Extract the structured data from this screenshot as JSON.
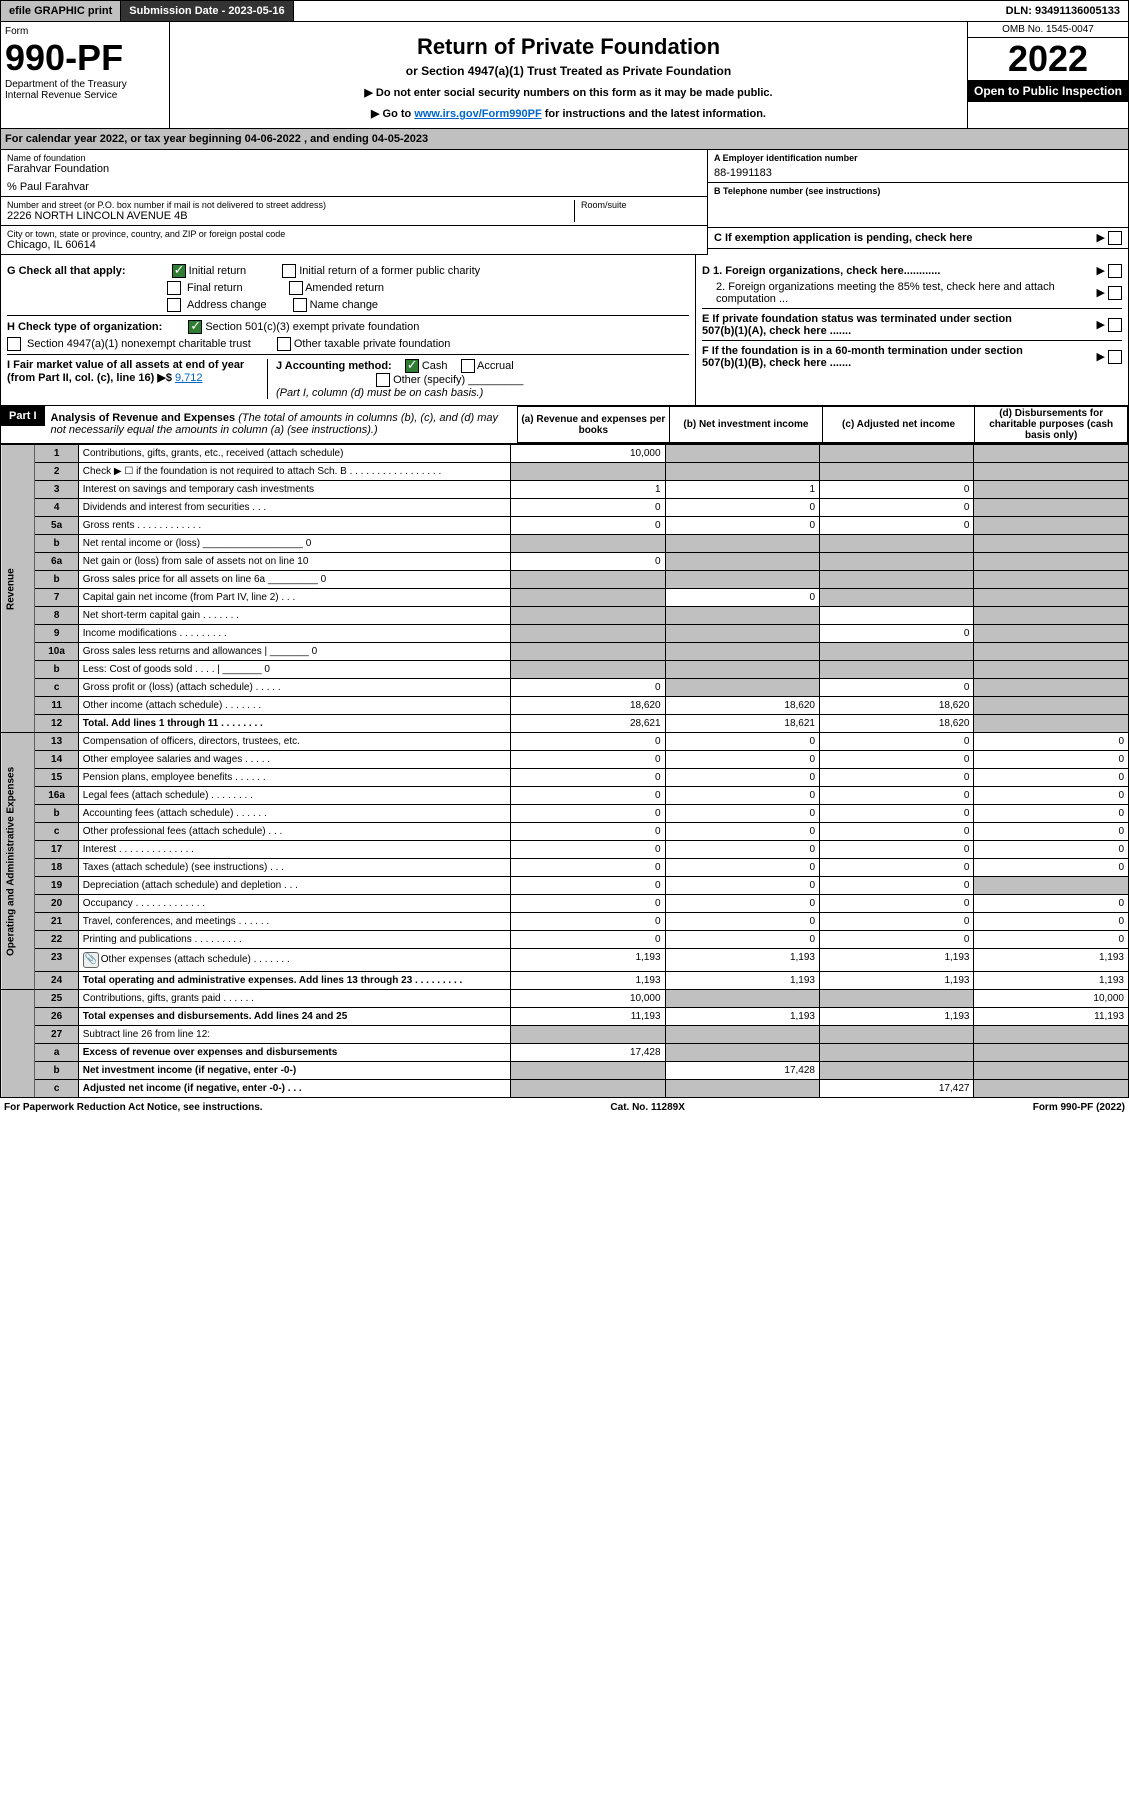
{
  "topBar": {
    "print": "efile GRAPHIC print",
    "submission": "Submission Date - 2023-05-16",
    "dln": "DLN: 93491136005133"
  },
  "header": {
    "form": "Form",
    "formNum": "990-PF",
    "dept": "Department of the Treasury\nInternal Revenue Service",
    "title": "Return of Private Foundation",
    "subtitle": "or Section 4947(a)(1) Trust Treated as Private Foundation",
    "note1": "▶ Do not enter social security numbers on this form as it may be made public.",
    "note2": "▶ Go to ",
    "link": "www.irs.gov/Form990PF",
    "note3": " for instructions and the latest information.",
    "omb": "OMB No. 1545-0047",
    "year": "2022",
    "open": "Open to Public Inspection"
  },
  "calYear": "For calendar year 2022, or tax year beginning 04-06-2022                          , and ending 04-05-2023",
  "foundation": {
    "nameLabel": "Name of foundation",
    "name": "Farahvar Foundation",
    "careOf": "% Paul Farahvar",
    "addrLabel": "Number and street (or P.O. box number if mail is not delivered to street address)",
    "addr": "2226 NORTH LINCOLN AVENUE 4B",
    "roomLabel": "Room/suite",
    "cityLabel": "City or town, state or province, country, and ZIP or foreign postal code",
    "city": "Chicago, IL  60614"
  },
  "right": {
    "aLabel": "A Employer identification number",
    "ein": "88-1991183",
    "bLabel": "B Telephone number (see instructions)",
    "cLabel": "C If exemption application is pending, check here",
    "d1": "D 1. Foreign organizations, check here............",
    "d2": "2. Foreign organizations meeting the 85% test, check here and attach computation ...",
    "e": "E  If private foundation status was terminated under section 507(b)(1)(A), check here .......",
    "f": "F  If the foundation is in a 60-month termination under section 507(b)(1)(B), check here ......."
  },
  "checks": {
    "g": "G Check all that apply:",
    "initial": "Initial return",
    "initialFormer": "Initial return of a former public charity",
    "final": "Final return",
    "amended": "Amended return",
    "addrChange": "Address change",
    "nameChange": "Name change",
    "h": "H Check type of organization:",
    "h1": "Section 501(c)(3) exempt private foundation",
    "h2": "Section 4947(a)(1) nonexempt charitable trust",
    "h3": "Other taxable private foundation",
    "i": "I Fair market value of all assets at end of year (from Part II, col. (c), line 16) ▶$ ",
    "iVal": "9,712",
    "j": "J Accounting method:",
    "cash": "Cash",
    "accrual": "Accrual",
    "other": "Other (specify)",
    "note": "(Part I, column (d) must be on cash basis.)"
  },
  "part1": {
    "label": "Part I",
    "title": "Analysis of Revenue and Expenses",
    "titleNote": " (The total of amounts in columns (b), (c), and (d) may not necessarily equal the amounts in column (a) (see instructions).)",
    "colA": "(a)    Revenue and expenses per books",
    "colB": "(b)    Net investment income",
    "colC": "(c)    Adjusted net income",
    "colD": "(d)    Disbursements for charitable purposes (cash basis only)"
  },
  "sections": {
    "revenue": "Revenue",
    "expenses": "Operating and Administrative Expenses"
  },
  "rows": [
    {
      "n": "1",
      "d": "Contributions, gifts, grants, etc., received (attach schedule)",
      "a": "10,000",
      "b": "",
      "c": "",
      "dd": "",
      "bs": true,
      "cs": true,
      "ds": true
    },
    {
      "n": "2",
      "d": "Check ▶ ☐ if the foundation is not required to attach Sch. B  .  .  .  .  .  .  .  .  .  .  .  .  .  .  .  .  .",
      "a": "",
      "b": "",
      "c": "",
      "dd": "",
      "as": true,
      "bs": true,
      "cs": true,
      "ds": true
    },
    {
      "n": "3",
      "d": "Interest on savings and temporary cash investments",
      "a": "1",
      "b": "1",
      "c": "0",
      "dd": "",
      "ds": true
    },
    {
      "n": "4",
      "d": "Dividends and interest from securities   .   .   .",
      "a": "0",
      "b": "0",
      "c": "0",
      "dd": "",
      "ds": true
    },
    {
      "n": "5a",
      "d": "Gross rents   .   .   .   .   .   .   .   .   .   .   .   .",
      "a": "0",
      "b": "0",
      "c": "0",
      "dd": "",
      "ds": true
    },
    {
      "n": "b",
      "d": "Net rental income or (loss) __________________ 0",
      "a": "",
      "b": "",
      "c": "",
      "dd": "",
      "as": true,
      "bs": true,
      "cs": true,
      "ds": true
    },
    {
      "n": "6a",
      "d": "Net gain or (loss) from sale of assets not on line 10",
      "a": "0",
      "b": "",
      "c": "",
      "dd": "",
      "bs": true,
      "cs": true,
      "ds": true
    },
    {
      "n": "b",
      "d": "Gross sales price for all assets on line 6a _________ 0",
      "a": "",
      "b": "",
      "c": "",
      "dd": "",
      "as": true,
      "bs": true,
      "cs": true,
      "ds": true
    },
    {
      "n": "7",
      "d": "Capital gain net income (from Part IV, line 2)   .   .   .",
      "a": "",
      "b": "0",
      "c": "",
      "dd": "",
      "as": true,
      "cs": true,
      "ds": true
    },
    {
      "n": "8",
      "d": "Net short-term capital gain   .   .   .   .   .   .   .",
      "a": "",
      "b": "",
      "c": "",
      "dd": "",
      "as": true,
      "bs": true,
      "ds": true
    },
    {
      "n": "9",
      "d": "Income modifications   .   .   .   .   .   .   .   .   .",
      "a": "",
      "b": "",
      "c": "0",
      "dd": "",
      "as": true,
      "bs": true,
      "ds": true
    },
    {
      "n": "10a",
      "d": "Gross sales less returns and allowances  | _______ 0",
      "a": "",
      "b": "",
      "c": "",
      "dd": "",
      "as": true,
      "bs": true,
      "cs": true,
      "ds": true
    },
    {
      "n": "b",
      "d": "Less: Cost of goods sold     .    .    .    .   | _______ 0",
      "a": "",
      "b": "",
      "c": "",
      "dd": "",
      "as": true,
      "bs": true,
      "cs": true,
      "ds": true
    },
    {
      "n": "c",
      "d": "Gross profit or (loss) (attach schedule)    .   .   .   .   .",
      "a": "0",
      "b": "",
      "c": "0",
      "dd": "",
      "bs": true,
      "ds": true
    },
    {
      "n": "11",
      "d": "Other income (attach schedule)    .   .   .   .   .   .   .",
      "a": "18,620",
      "b": "18,620",
      "c": "18,620",
      "dd": "",
      "ds": true
    },
    {
      "n": "12",
      "d": "Total. Add lines 1 through 11    .   .   .   .   .   .   .   .",
      "a": "28,621",
      "b": "18,621",
      "c": "18,620",
      "dd": "",
      "bold": true,
      "ds": true
    },
    {
      "n": "13",
      "d": "Compensation of officers, directors, trustees, etc.",
      "a": "0",
      "b": "0",
      "c": "0",
      "dd": "0"
    },
    {
      "n": "14",
      "d": "Other employee salaries and wages    .   .   .   .   .",
      "a": "0",
      "b": "0",
      "c": "0",
      "dd": "0"
    },
    {
      "n": "15",
      "d": "Pension plans, employee benefits   .   .   .   .   .   .",
      "a": "0",
      "b": "0",
      "c": "0",
      "dd": "0"
    },
    {
      "n": "16a",
      "d": "Legal fees (attach schedule)  .   .   .   .   .   .   .   .",
      "a": "0",
      "b": "0",
      "c": "0",
      "dd": "0"
    },
    {
      "n": "b",
      "d": "Accounting fees (attach schedule)   .   .   .   .   .   .",
      "a": "0",
      "b": "0",
      "c": "0",
      "dd": "0"
    },
    {
      "n": "c",
      "d": "Other professional fees (attach schedule)    .   .   .",
      "a": "0",
      "b": "0",
      "c": "0",
      "dd": "0"
    },
    {
      "n": "17",
      "d": "Interest   .   .   .   .   .   .   .   .   .   .   .   .   .   .",
      "a": "0",
      "b": "0",
      "c": "0",
      "dd": "0"
    },
    {
      "n": "18",
      "d": "Taxes (attach schedule) (see instructions)     .   .   .",
      "a": "0",
      "b": "0",
      "c": "0",
      "dd": "0"
    },
    {
      "n": "19",
      "d": "Depreciation (attach schedule) and depletion    .   .   .",
      "a": "0",
      "b": "0",
      "c": "0",
      "dd": "",
      "ds": true
    },
    {
      "n": "20",
      "d": "Occupancy  .   .   .   .   .   .   .   .   .   .   .   .   .",
      "a": "0",
      "b": "0",
      "c": "0",
      "dd": "0"
    },
    {
      "n": "21",
      "d": "Travel, conferences, and meetings  .   .   .   .   .   .",
      "a": "0",
      "b": "0",
      "c": "0",
      "dd": "0"
    },
    {
      "n": "22",
      "d": "Printing and publications  .   .   .   .   .   .   .   .   .",
      "a": "0",
      "b": "0",
      "c": "0",
      "dd": "0"
    },
    {
      "n": "23",
      "d": "Other expenses (attach schedule)  .   .   .   .   .   .   .",
      "a": "1,193",
      "b": "1,193",
      "c": "1,193",
      "dd": "1,193",
      "icon": true
    },
    {
      "n": "24",
      "d": "Total operating and administrative expenses. Add lines 13 through 23   .   .   .   .   .   .   .   .   .",
      "a": "1,193",
      "b": "1,193",
      "c": "1,193",
      "dd": "1,193",
      "bold": true
    },
    {
      "n": "25",
      "d": "Contributions, gifts, grants paid     .   .   .   .   .   .",
      "a": "10,000",
      "b": "",
      "c": "",
      "dd": "10,000",
      "bs": true,
      "cs": true
    },
    {
      "n": "26",
      "d": "Total expenses and disbursements. Add lines 24 and 25",
      "a": "11,193",
      "b": "1,193",
      "c": "1,193",
      "dd": "11,193",
      "bold": true
    },
    {
      "n": "27",
      "d": "Subtract line 26 from line 12:",
      "a": "",
      "b": "",
      "c": "",
      "dd": "",
      "as": true,
      "bs": true,
      "cs": true,
      "ds": true
    },
    {
      "n": "a",
      "d": "Excess of revenue over expenses and disbursements",
      "a": "17,428",
      "b": "",
      "c": "",
      "dd": "",
      "bold": true,
      "bs": true,
      "cs": true,
      "ds": true
    },
    {
      "n": "b",
      "d": "Net investment income (if negative, enter -0-)",
      "a": "",
      "b": "17,428",
      "c": "",
      "dd": "",
      "bold": true,
      "as": true,
      "cs": true,
      "ds": true
    },
    {
      "n": "c",
      "d": "Adjusted net income (if negative, enter -0-)   .   .   .",
      "a": "",
      "b": "",
      "c": "17,427",
      "dd": "",
      "bold": true,
      "as": true,
      "bs": true,
      "ds": true
    }
  ],
  "footer": {
    "left": "For Paperwork Reduction Act Notice, see instructions.",
    "center": "Cat. No. 11289X",
    "right": "Form 990-PF (2022)"
  }
}
